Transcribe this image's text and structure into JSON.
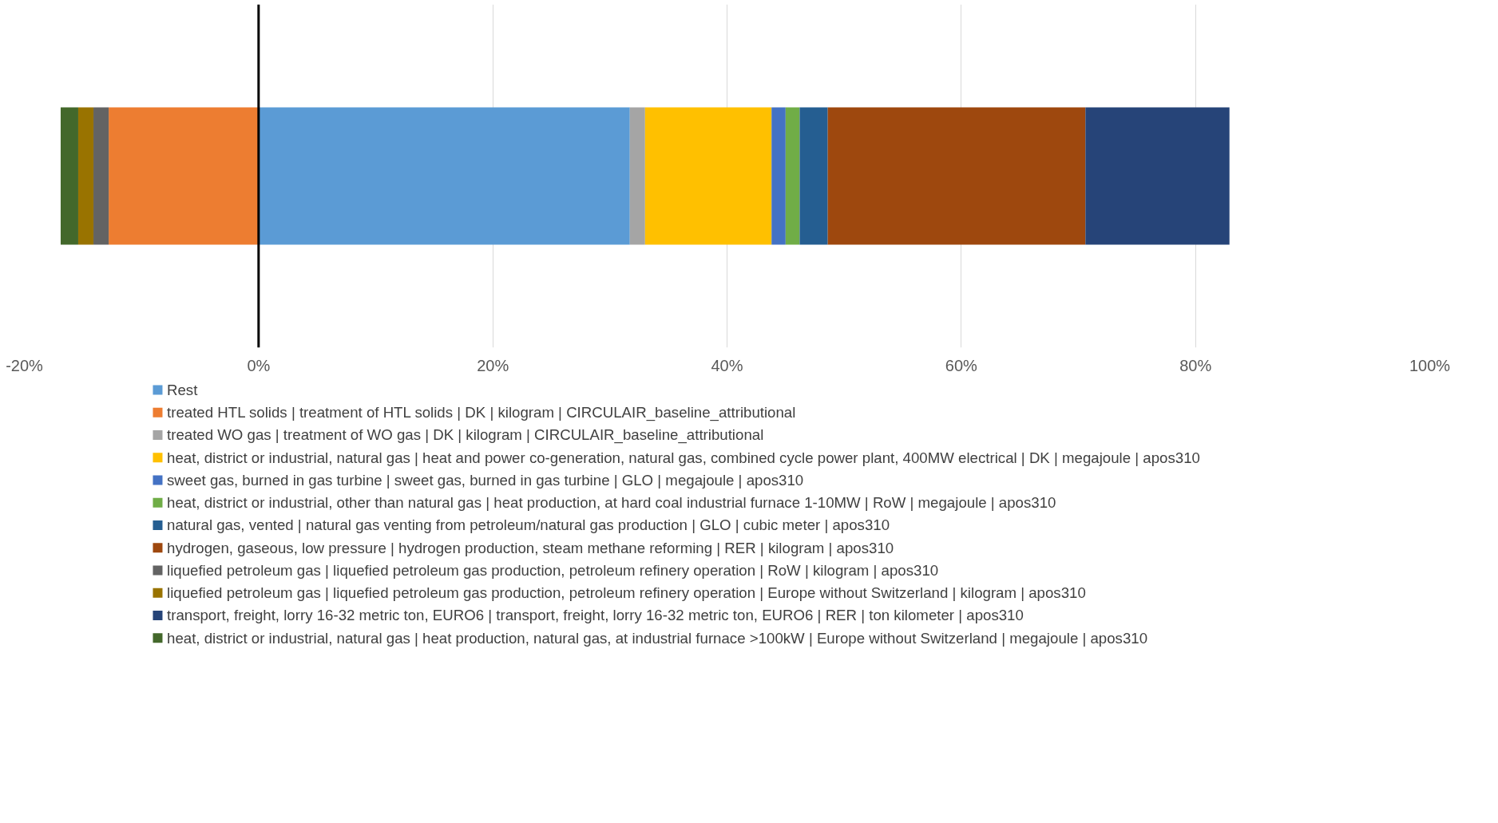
{
  "chart_data": {
    "type": "bar",
    "orientation": "horizontal",
    "stacked": true,
    "categories": [
      null
    ],
    "xlim": [
      -20,
      100
    ],
    "xticks": [
      {
        "value": -20,
        "label": "-20%"
      },
      {
        "value": 0,
        "label": "0%"
      },
      {
        "value": 20,
        "label": "20%"
      },
      {
        "value": 40,
        "label": "40%"
      },
      {
        "value": 60,
        "label": "60%"
      },
      {
        "value": 80,
        "label": "80%"
      },
      {
        "value": 100,
        "label": "100%"
      }
    ],
    "grid": "x",
    "legend": "bottom",
    "tick_labels": "x",
    "ref_lines": [
      {
        "axis": "x",
        "value": 0,
        "color": "#000000"
      }
    ],
    "series": [
      {
        "name": "Rest",
        "color": "#5b9bd5",
        "values": [
          31.7
        ]
      },
      {
        "name": "treated HTL solids | treatment of HTL solids | DK | kilogram | CIRCULAIR_baseline_attributional",
        "color": "#ed7d31",
        "values": [
          -12.8
        ]
      },
      {
        "name": "treated WO gas | treatment of WO gas | DK | kilogram | CIRCULAIR_baseline_attributional",
        "color": "#a5a5a5",
        "values": [
          1.3
        ]
      },
      {
        "name": "heat, district or industrial, natural gas | heat and power co-generation, natural gas, combined cycle power plant, 400MW electrical | DK | megajoule | apos310",
        "color": "#ffc000",
        "values": [
          10.8
        ]
      },
      {
        "name": "sweet gas, burned in gas turbine | sweet gas, burned in gas turbine | GLO | megajoule | apos310",
        "color": "#4472c4",
        "values": [
          1.2
        ]
      },
      {
        "name": "heat, district or industrial, other than natural gas | heat production, at hard coal industrial furnace 1-10MW | RoW | megajoule | apos310",
        "color": "#70ad47",
        "values": [
          1.2
        ]
      },
      {
        "name": "natural gas, vented | natural gas venting from petroleum/natural gas production | GLO | cubic meter | apos310",
        "color": "#255e91",
        "values": [
          2.4
        ]
      },
      {
        "name": "hydrogen, gaseous, low pressure | hydrogen production, steam methane reforming | RER | kilogram | apos310",
        "color": "#9e480e",
        "values": [
          22.0
        ]
      },
      {
        "name": "liquefied petroleum gas | liquefied petroleum gas production, petroleum refinery operation | RoW | kilogram | apos310",
        "color": "#636363",
        "values": [
          -1.3
        ]
      },
      {
        "name": "liquefied petroleum gas | liquefied petroleum gas production, petroleum refinery operation | Europe without Switzerland | kilogram | apos310",
        "color": "#997300",
        "values": [
          -1.3
        ]
      },
      {
        "name": "transport, freight, lorry 16-32 metric ton, EURO6 | transport, freight, lorry 16-32 metric ton, EURO6 | RER | ton kilometer | apos310",
        "color": "#264478",
        "values": [
          12.3
        ]
      },
      {
        "name": "heat, district or industrial, natural gas | heat production, natural gas, at industrial furnace >100kW | Europe without Switzerland | megajoule | apos310",
        "color": "#43682b",
        "values": [
          -1.5
        ]
      }
    ]
  }
}
